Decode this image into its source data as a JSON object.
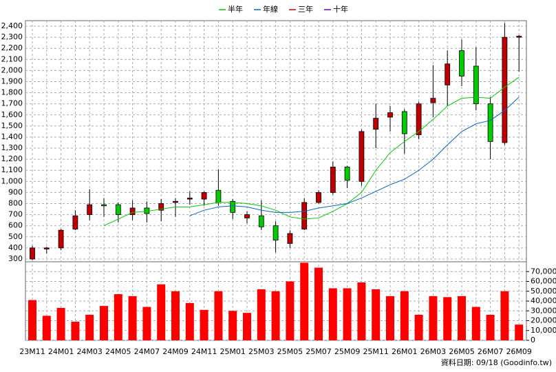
{
  "chart_data": [
    {
      "type": "candlestick",
      "categories": [
        "23M11",
        null,
        "24M01",
        null,
        "24M03",
        null,
        "24M05",
        null,
        "24M07",
        null,
        "24M09",
        null,
        "24M11",
        null,
        "25M01",
        null,
        "25M03",
        null,
        "25M05",
        null,
        "25M07",
        null,
        "25M09",
        null,
        "25M11",
        null,
        "26M01",
        null,
        "26M03",
        null,
        "26M05",
        null,
        "26M07",
        null,
        "26M09"
      ],
      "open": [
        300,
        390,
        400,
        570,
        700,
        790,
        790,
        700,
        760,
        740,
        810,
        840,
        840,
        920,
        820,
        670,
        690,
        600,
        440,
        570,
        810,
        900,
        1130,
        1000,
        1470,
        1580,
        1630,
        1420,
        1710,
        1870,
        2180,
        2040,
        1700,
        1350,
        2300
      ],
      "high": [
        420,
        410,
        570,
        740,
        930,
        850,
        810,
        830,
        820,
        840,
        850,
        910,
        910,
        1110,
        840,
        730,
        830,
        640,
        560,
        850,
        920,
        1180,
        1140,
        1470,
        1700,
        1680,
        1650,
        1720,
        2050,
        2180,
        2280,
        2210,
        1760,
        2430,
        2320
      ],
      "low": [
        290,
        350,
        380,
        560,
        650,
        680,
        630,
        650,
        630,
        640,
        680,
        790,
        780,
        780,
        660,
        620,
        560,
        360,
        400,
        560,
        800,
        880,
        940,
        960,
        1300,
        1450,
        1250,
        1380,
        1580,
        1680,
        1860,
        1640,
        1200,
        1330,
        1990
      ],
      "close": [
        400,
        400,
        560,
        690,
        790,
        780,
        700,
        760,
        710,
        800,
        820,
        850,
        900,
        810,
        720,
        700,
        590,
        470,
        530,
        810,
        900,
        1130,
        1010,
        1450,
        1570,
        1620,
        1430,
        1700,
        1750,
        2060,
        1950,
        1700,
        1360,
        2300,
        2310
      ],
      "up_color": "#c00000",
      "down_color": "#00cc00",
      "series": [
        {
          "name": "半年",
          "color": "#00cc00",
          "values": [
            null,
            null,
            null,
            null,
            null,
            600,
            660,
            720,
            730,
            750,
            770,
            770,
            790,
            810,
            810,
            800,
            780,
            740,
            680,
            660,
            670,
            730,
            800,
            900,
            1100,
            1260,
            1360,
            1450,
            1560,
            1680,
            1750,
            1760,
            1750,
            1850,
            1940
          ]
        },
        {
          "name": "年線",
          "color": "#0066cc",
          "values": [
            null,
            null,
            null,
            null,
            null,
            null,
            null,
            null,
            null,
            null,
            null,
            690,
            740,
            770,
            780,
            770,
            740,
            720,
            720,
            730,
            760,
            780,
            800,
            850,
            910,
            970,
            1020,
            1100,
            1200,
            1330,
            1450,
            1520,
            1550,
            1640,
            1760
          ]
        },
        {
          "name": "三年",
          "color": "#cc0000",
          "values": [
            null,
            null,
            null,
            null,
            null,
            null,
            null,
            null,
            null,
            null,
            null,
            null,
            null,
            null,
            null,
            null,
            null,
            null,
            null,
            null,
            null,
            null,
            null,
            null,
            null,
            null,
            null,
            null,
            null,
            null,
            null,
            null,
            null,
            null,
            null
          ]
        },
        {
          "name": "十年",
          "color": "#6600cc",
          "values": [
            null,
            null,
            null,
            null,
            null,
            null,
            null,
            null,
            null,
            null,
            null,
            null,
            null,
            null,
            null,
            null,
            null,
            null,
            null,
            null,
            null,
            null,
            null,
            null,
            null,
            null,
            null,
            null,
            null,
            null,
            null,
            null,
            null,
            null,
            null
          ]
        }
      ],
      "ylim": [
        275,
        2450
      ],
      "yticks": [
        300,
        400,
        500,
        600,
        700,
        800,
        900,
        {
          "value": 1000,
          "label": "1,000"
        },
        {
          "value": 1100,
          "label": "1,100"
        },
        {
          "value": 1200,
          "label": "1,200"
        },
        {
          "value": 1300,
          "label": "1,300"
        },
        {
          "value": 1400,
          "label": "1,400"
        },
        {
          "value": 1500,
          "label": "1,500"
        },
        {
          "value": 1600,
          "label": "1,600"
        },
        {
          "value": 1700,
          "label": "1,700"
        },
        {
          "value": 1800,
          "label": "1,800"
        },
        {
          "value": 1900,
          "label": "1,900"
        },
        {
          "value": 2000,
          "label": "2,000"
        },
        {
          "value": 2100,
          "label": "2,100"
        },
        {
          "value": 2200,
          "label": "2,200"
        },
        {
          "value": 2300,
          "label": "2,300"
        },
        {
          "value": 2400,
          "label": "2,400"
        }
      ],
      "grid": true,
      "legend": "top"
    },
    {
      "type": "bar",
      "color": "#ff0000",
      "values": [
        41000,
        25000,
        33000,
        19000,
        26000,
        35000,
        47000,
        45000,
        34000,
        57000,
        50000,
        38000,
        31000,
        50000,
        30000,
        28000,
        52000,
        50000,
        60000,
        79000,
        74000,
        53000,
        53000,
        59000,
        52000,
        45000,
        50000,
        26000,
        45000,
        44000,
        45000,
        34000,
        26000,
        50000,
        16000
      ],
      "ylim": [
        0,
        80000
      ],
      "yticks": [
        0,
        {
          "value": 10000,
          "label": "10,000"
        },
        {
          "value": 20000,
          "label": "20,000"
        },
        {
          "value": 30000,
          "label": "30,000"
        },
        {
          "value": 40000,
          "label": "40,000"
        },
        {
          "value": 50000,
          "label": "50,000"
        },
        {
          "value": 60000,
          "label": "60,000"
        },
        {
          "value": 70000,
          "label": "70,000"
        }
      ],
      "grid": true
    }
  ],
  "source": "資料日期: 09/18  (Goodinfo.tw)"
}
